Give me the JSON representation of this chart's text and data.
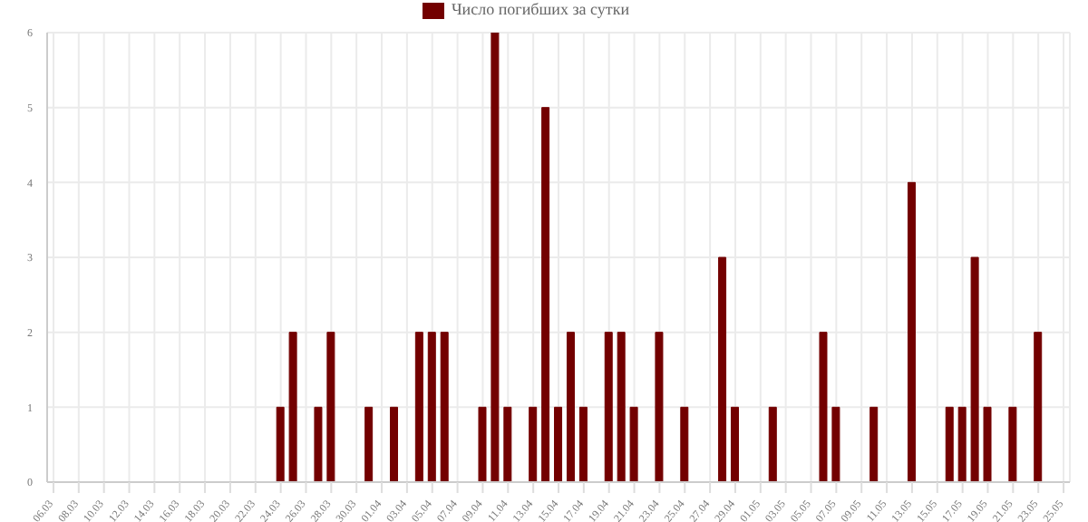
{
  "chart_data": {
    "type": "bar",
    "categories": [
      "06.03",
      null,
      "08.03",
      null,
      "10.03",
      null,
      "12.03",
      null,
      "14.03",
      null,
      "16.03",
      null,
      "18.03",
      null,
      "20.03",
      null,
      "22.03",
      null,
      "24.03",
      null,
      "26.03",
      null,
      "28.03",
      null,
      "30.03",
      null,
      "01.04",
      null,
      "03.04",
      null,
      "05.04",
      null,
      "07.04",
      null,
      "09.04",
      null,
      "11.04",
      null,
      "13.04",
      null,
      "15.04",
      null,
      "17.04",
      null,
      "19.04",
      null,
      "21.04",
      null,
      "23.04",
      null,
      "25.04",
      null,
      "27.04",
      null,
      "29.04",
      null,
      "01.05",
      null,
      "03.05",
      null,
      "05.05",
      null,
      "07.05",
      null,
      "09.05",
      null,
      "11.05",
      null,
      "13.05",
      null,
      "15.05",
      null,
      "17.05",
      null,
      "19.05",
      null,
      "21.05",
      null,
      "23.05",
      null,
      "25.05"
    ],
    "series": [
      {
        "name": "Число погибших за сутки",
        "color": "#730000",
        "values": [
          0,
          0,
          0,
          0,
          0,
          0,
          0,
          0,
          0,
          0,
          0,
          0,
          0,
          0,
          0,
          0,
          0,
          0,
          1,
          2,
          0,
          1,
          2,
          0,
          0,
          1,
          0,
          1,
          0,
          2,
          2,
          2,
          0,
          0,
          1,
          6,
          1,
          0,
          1,
          5,
          1,
          2,
          1,
          0,
          2,
          2,
          1,
          0,
          2,
          0,
          1,
          0,
          0,
          3,
          1,
          0,
          0,
          1,
          0,
          0,
          0,
          2,
          1,
          0,
          0,
          1,
          0,
          0,
          4,
          0,
          0,
          1,
          1,
          3,
          1,
          0,
          1,
          0,
          2,
          0,
          0
        ]
      }
    ],
    "ylim": [
      0,
      6
    ],
    "yticks": [
      0,
      1,
      2,
      3,
      4,
      5,
      6
    ],
    "grid": true,
    "legend": "top"
  }
}
